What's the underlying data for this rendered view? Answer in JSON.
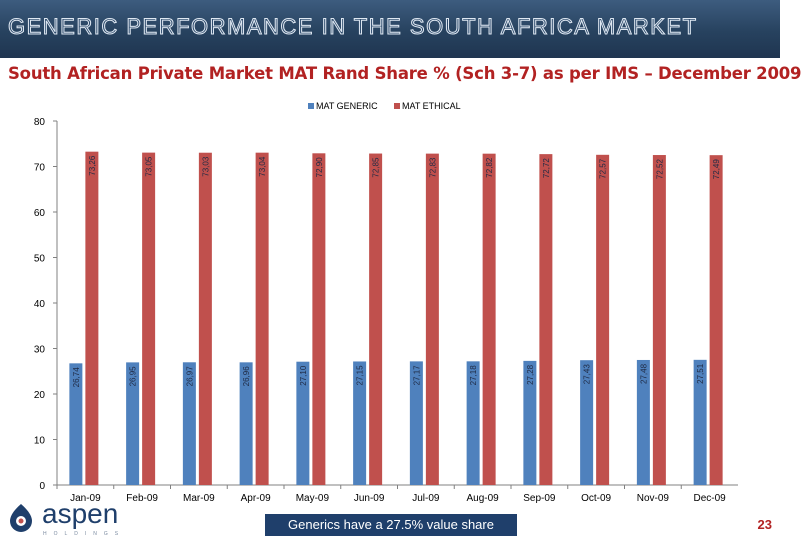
{
  "header": {
    "title": "GENERIC PERFORMANCE IN THE SOUTH AFRICA MARKET"
  },
  "subtitle": "South African Private Market MAT Rand Share % (Sch 3-7) as per IMS – December 2009",
  "footer": {
    "callout": "Generics have a 27.5% value share",
    "page_number": "23"
  },
  "logo": {
    "name": "aspen",
    "sub": "HOLDINGS"
  },
  "colors": {
    "generic": "#4f81bd",
    "ethical": "#c0504d",
    "header": "#27425f",
    "subtitle": "#b22222",
    "callout_bg": "#1f3f6b"
  },
  "chart_data": {
    "type": "bar",
    "categories": [
      "Jan-09",
      "Feb-09",
      "Mar-09",
      "Apr-09",
      "May-09",
      "Jun-09",
      "Jul-09",
      "Aug-09",
      "Sep-09",
      "Oct-09",
      "Nov-09",
      "Dec-09"
    ],
    "series": [
      {
        "name": "MAT GENERIC",
        "values": [
          26.74,
          26.95,
          26.97,
          26.96,
          27.1,
          27.15,
          27.17,
          27.18,
          27.28,
          27.43,
          27.48,
          27.51
        ],
        "labels": [
          "26,74",
          "26,95",
          "26,97",
          "26,96",
          "27,10",
          "27,15",
          "27,17",
          "27,18",
          "27,28",
          "27,43",
          "27,48",
          "27,51"
        ]
      },
      {
        "name": "MAT ETHICAL",
        "values": [
          73.26,
          73.05,
          73.03,
          73.04,
          72.9,
          72.85,
          72.83,
          72.82,
          72.72,
          72.57,
          72.52,
          72.49
        ],
        "labels": [
          "73,26",
          "73,05",
          "73,03",
          "73,04",
          "72,90",
          "72,85",
          "72,83",
          "72,82",
          "72,72",
          "72,57",
          "72,52",
          "72,49"
        ]
      }
    ],
    "yticks": [
      "0",
      "10",
      "20",
      "30",
      "40",
      "50",
      "60",
      "70",
      "80"
    ],
    "ylim": [
      0,
      80
    ],
    "legend_position": "top-center",
    "grid": false
  }
}
